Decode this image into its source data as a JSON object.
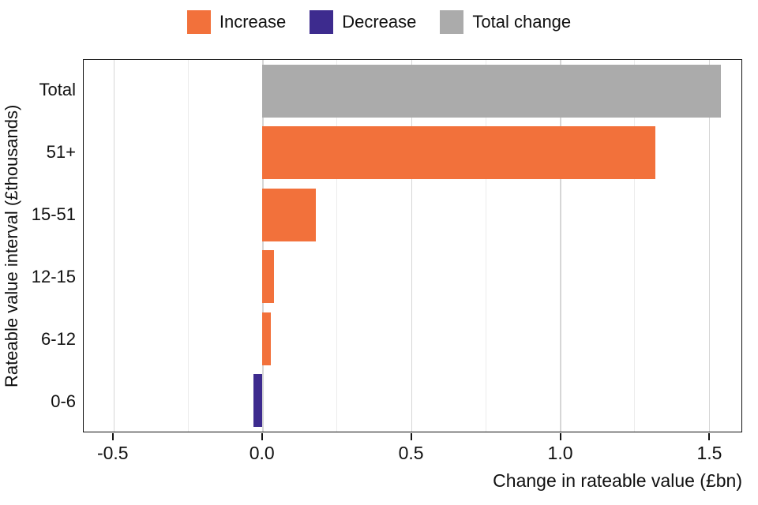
{
  "legend": {
    "items": [
      {
        "label": "Increase",
        "color": "#F2713B"
      },
      {
        "label": "Decrease",
        "color": "#3D2B8E"
      },
      {
        "label": "Total change",
        "color": "#ABABAB"
      }
    ]
  },
  "chart_data": {
    "type": "bar",
    "orientation": "horizontal",
    "title": "",
    "categories": [
      "Total",
      "51+",
      "15-51",
      "12-15",
      "6-12",
      "0-6"
    ],
    "values": [
      1.54,
      1.32,
      0.18,
      0.04,
      0.03,
      -0.03
    ],
    "bar_colors": [
      "#ABABAB",
      "#F2713B",
      "#F2713B",
      "#F2713B",
      "#F2713B",
      "#3D2B8E"
    ],
    "series_legend": [
      "Increase",
      "Decrease",
      "Total change"
    ],
    "xlabel": "Change in rateable value (£bn)",
    "ylabel": "Rateable value interval (£thousands)",
    "xlim": [
      -0.6,
      1.61
    ],
    "xticks": [
      -0.5,
      0.0,
      0.5,
      1.0,
      1.5
    ],
    "xtick_labels": [
      "-0.5",
      "0.0",
      "0.5",
      "1.0",
      "1.5"
    ],
    "xminor": [
      -0.25,
      0.25,
      0.75,
      1.25
    ],
    "grid": true,
    "legend_position": "top"
  }
}
